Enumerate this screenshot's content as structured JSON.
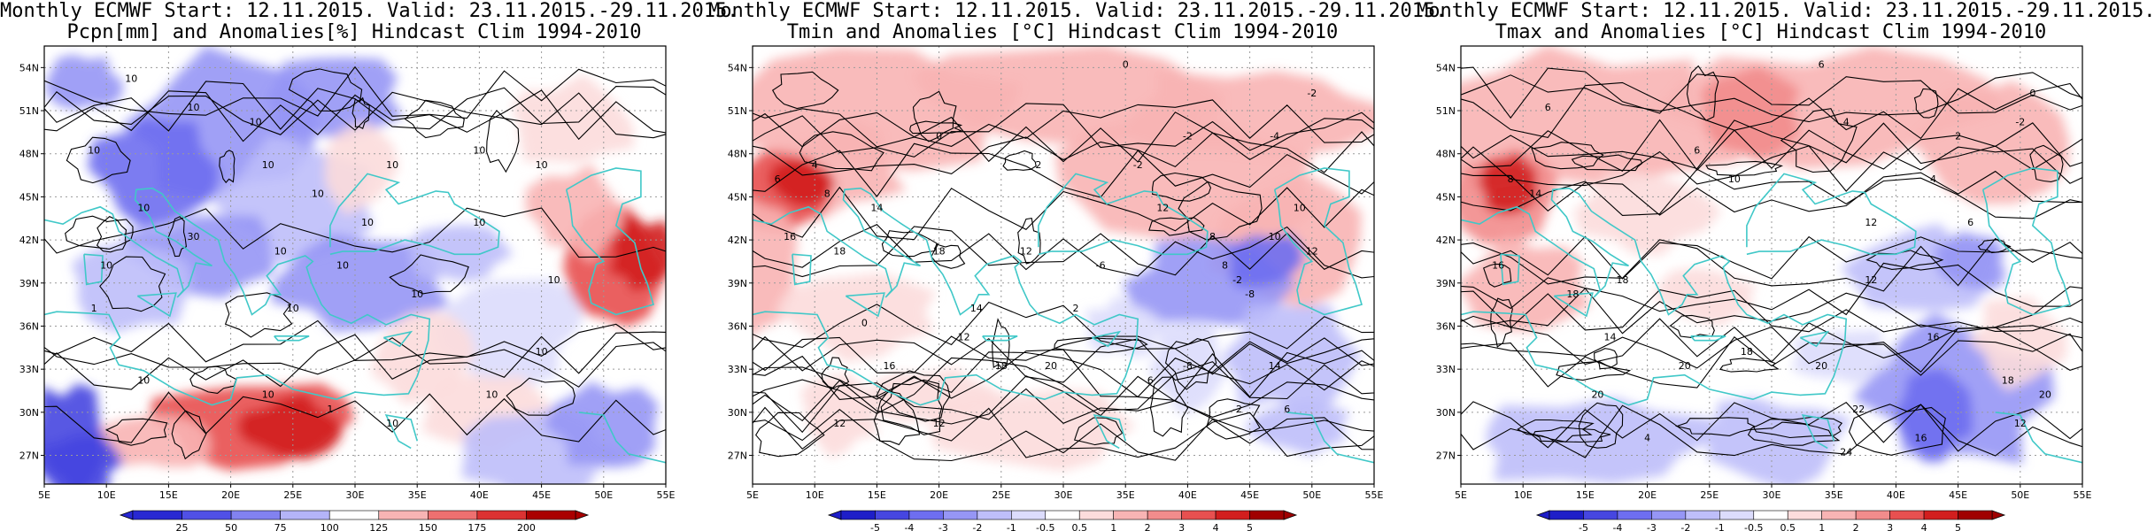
{
  "panels": [
    {
      "title_line1": "Monthly ECMWF Start: 12.11.2015. Valid: 23.11.2015.-29.11.2015.",
      "title_line2": "Pcpn[mm] and Anomalies[%] Hindcast Clim 1994-2010",
      "colorbar_labels": [
        "25",
        "50",
        "75",
        "100",
        "125",
        "150",
        "175",
        "200"
      ],
      "contour_labels": [
        "10",
        "10",
        "10",
        "10",
        "10",
        "10",
        "10",
        "10",
        "10",
        "10",
        "10",
        "30",
        "10",
        "10",
        "10",
        "10",
        "10",
        "10",
        "1",
        "10",
        "10",
        "10",
        "10",
        "10",
        "1",
        "10"
      ]
    },
    {
      "title_line1": "Monthly ECMWF Start: 12.11.2015. Valid: 23.11.2015.-29.11.2015.",
      "title_line2": "Tmin and Anomalies [°C] Hindcast Clim 1994-2010",
      "colorbar_labels": [
        "-5",
        "-4",
        "-3",
        "-2",
        "-1",
        "-0.5",
        "0.5",
        "1",
        "2",
        "3",
        "4",
        "5"
      ],
      "contour_labels": [
        "0",
        "-2",
        "-4",
        "-2",
        "0",
        "2",
        "-2",
        "4",
        "6",
        "8",
        "12",
        "16",
        "14",
        "18",
        "18",
        "12",
        "8",
        "10",
        "8",
        "12",
        "-2",
        "-8",
        "-6",
        "2",
        "0",
        "-8",
        "12",
        "16",
        "18",
        "20",
        "14",
        "6",
        "10",
        "12",
        "12",
        "-2",
        "6",
        "14"
      ]
    },
    {
      "title_line1": "Monthly ECMWF Start: 12.11.2015. Valid: 23.11.2015.-29.11.2015.",
      "title_line2": "Tmax and Anomalies [°C] Hindcast Clim 1994-2010",
      "colorbar_labels": [
        "-5",
        "-4",
        "-3",
        "-2",
        "-1",
        "-0.5",
        "0.5",
        "1",
        "2",
        "3",
        "4",
        "5"
      ],
      "contour_labels": [
        "6",
        "6",
        "4",
        "2",
        "-2",
        "0",
        "6",
        "8",
        "4",
        "10",
        "12",
        "14",
        "6",
        "16",
        "18",
        "12",
        "18",
        "14",
        "20",
        "16",
        "18",
        "20",
        "18",
        "20",
        "22",
        "24",
        "12",
        "20",
        "16",
        "4"
      ]
    }
  ],
  "map_axes": {
    "lat_labels": [
      "54N",
      "51N",
      "48N",
      "45N",
      "42N",
      "39N",
      "36N",
      "33N",
      "30N",
      "27N"
    ],
    "lon_labels": [
      "5E",
      "10E",
      "15E",
      "20E",
      "25E",
      "30E",
      "35E",
      "40E",
      "45E",
      "50E",
      "55E"
    ]
  },
  "colors": {
    "coast": "#40c8c8",
    "contour": "#000000",
    "neg_scale": [
      "#1e1ec8",
      "#4646e0",
      "#6e6ef0",
      "#9696f5",
      "#bebefa",
      "#dcdcfc"
    ],
    "pos_scale": [
      "#fcdcdc",
      "#f8b4b4",
      "#f28c8c",
      "#e85050",
      "#d21e1e",
      "#a00000"
    ]
  }
}
